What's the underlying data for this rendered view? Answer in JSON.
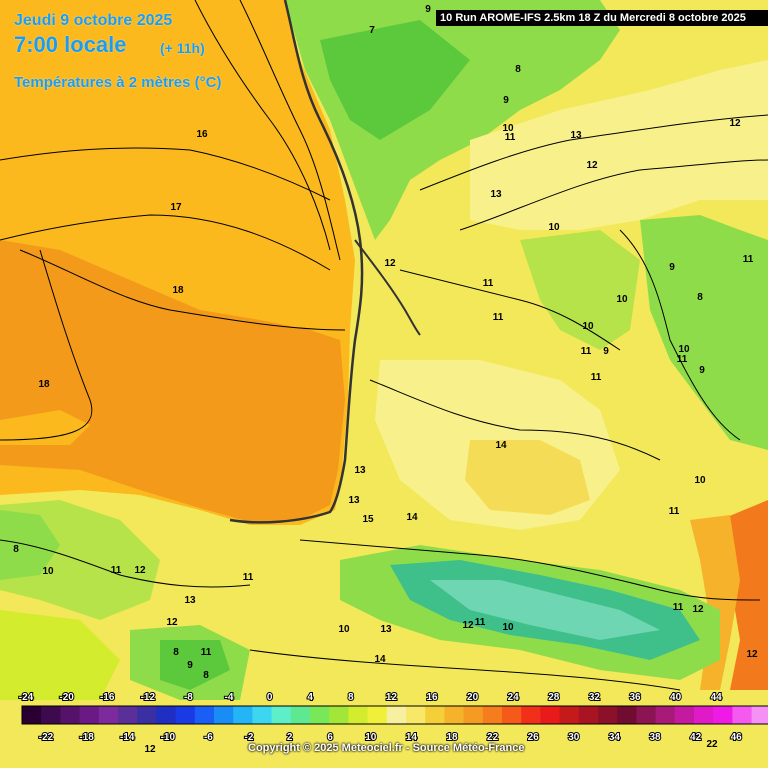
{
  "header": {
    "date": "Jeudi 9 octobre 2025",
    "time": "7:00 locale",
    "offset": "(+ 11h)",
    "variable": "Températures à 2 mètres (°C)",
    "run": "Run AROME-IFS 2.5km 18 Z du Mercredi 8 octobre 2025",
    "run_corner": "10"
  },
  "copyright": "Copyright © 2025 Meteociel.fr - Source Météo-France",
  "colors": {
    "sea_orange": "#f39a1a",
    "sea_light": "#fbb91e",
    "land_yellow": "#f2e85a",
    "land_pale": "#f8f08a",
    "land_green": "#8fdc4a",
    "land_green_dark": "#5cc83c",
    "mountain_teal": "#3fbf8a",
    "hot_orange": "#f27a1c"
  },
  "scale": {
    "colors": [
      "#2a0033",
      "#3d0a4d",
      "#55126b",
      "#6b1a85",
      "#7d2a9c",
      "#5a2f9a",
      "#3a2fa3",
      "#1f2fc4",
      "#1a3ae6",
      "#1a5ff5",
      "#1a8cf5",
      "#23b5f5",
      "#3cd6f0",
      "#5eeec8",
      "#5ee890",
      "#78e85a",
      "#a3e63a",
      "#d3ec2e",
      "#f0f03a",
      "#f7f0a0",
      "#f7e86a",
      "#f5cf3a",
      "#f5b22a",
      "#f59a22",
      "#f57d1e",
      "#f55a1a",
      "#f2301a",
      "#e81a1a",
      "#c41a1a",
      "#a81422",
      "#8c1028",
      "#700c30",
      "#8c1452",
      "#a81a78",
      "#c41aa0",
      "#e01ac8",
      "#f01ae6",
      "#f55af0",
      "#f590f5"
    ],
    "top_labels": [
      "-24",
      "-20",
      "-16",
      "-12",
      "-8",
      "-4",
      "0",
      "4",
      "8",
      "12",
      "16",
      "20",
      "24",
      "28",
      "32",
      "36",
      "40",
      "44"
    ],
    "bottom_labels": [
      "-22",
      "-18",
      "-14",
      "-10",
      "-6",
      "-2",
      "2",
      "6",
      "10",
      "14",
      "18",
      "22",
      "26",
      "30",
      "34",
      "38",
      "42",
      "46"
    ]
  },
  "contour_labels": [
    {
      "text": "9"
    },
    {
      "text": "7"
    },
    {
      "text": "16"
    },
    {
      "text": "17"
    },
    {
      "text": "18"
    },
    {
      "text": "18"
    },
    {
      "text": "8"
    },
    {
      "text": "9"
    },
    {
      "text": "10"
    },
    {
      "text": "11"
    },
    {
      "text": "12"
    },
    {
      "text": "13"
    },
    {
      "text": "12"
    },
    {
      "text": "13"
    },
    {
      "text": "10"
    },
    {
      "text": "11"
    },
    {
      "text": "12"
    },
    {
      "text": "9"
    },
    {
      "text": "8"
    },
    {
      "text": "11"
    },
    {
      "text": "11"
    },
    {
      "text": "10"
    },
    {
      "text": "10"
    },
    {
      "text": "11"
    },
    {
      "text": "9"
    },
    {
      "text": "10"
    },
    {
      "text": "9"
    },
    {
      "text": "11"
    },
    {
      "text": "14"
    },
    {
      "text": "13"
    },
    {
      "text": "13"
    },
    {
      "text": "14"
    },
    {
      "text": "10"
    },
    {
      "text": "11"
    },
    {
      "text": "8"
    },
    {
      "text": "10"
    },
    {
      "text": "11"
    },
    {
      "text": "12"
    },
    {
      "text": "11"
    },
    {
      "text": "13"
    },
    {
      "text": "12"
    },
    {
      "text": "13"
    },
    {
      "text": "10"
    },
    {
      "text": "12"
    },
    {
      "text": "11"
    },
    {
      "text": "10"
    },
    {
      "text": "8"
    },
    {
      "text": "11"
    },
    {
      "text": "9"
    },
    {
      "text": "8"
    },
    {
      "text": "14"
    },
    {
      "text": "11"
    },
    {
      "text": "12"
    },
    {
      "text": "12"
    },
    {
      "text": "15"
    },
    {
      "text": "11"
    },
    {
      "text": "22"
    },
    {
      "text": "12"
    }
  ]
}
